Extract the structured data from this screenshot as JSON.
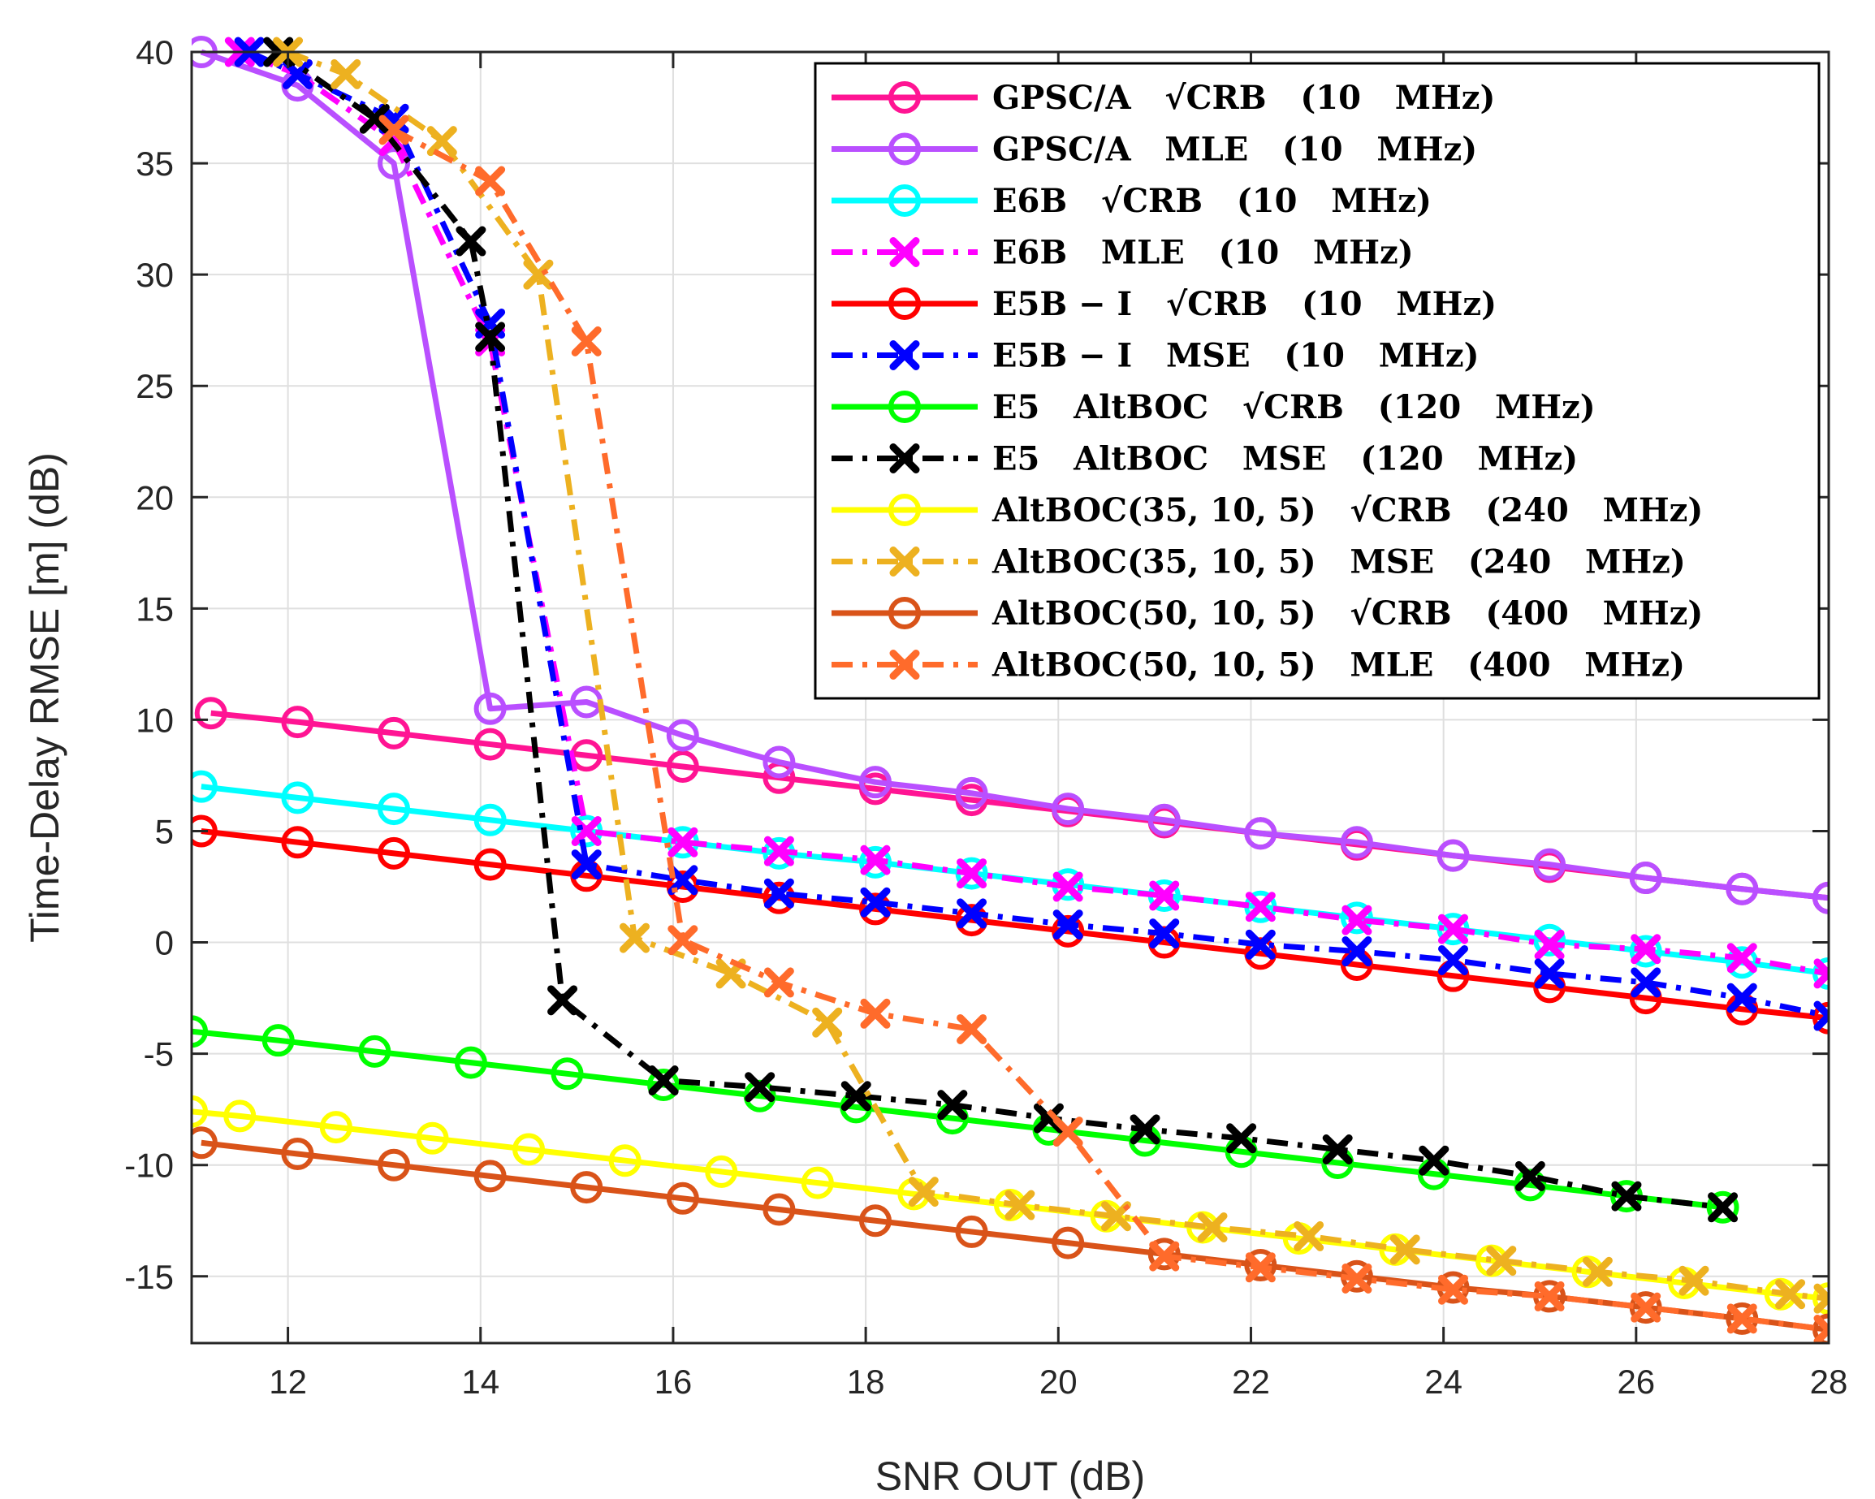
{
  "chart_data": {
    "type": "line",
    "title": "",
    "xlabel": "SNR OUT (dB)",
    "ylabel": "Time-Delay RMSE [m] (dB)",
    "xlim": [
      11,
      28
    ],
    "ylim": [
      -18,
      40
    ],
    "xticks": [
      12,
      14,
      16,
      18,
      20,
      22,
      24,
      26,
      28
    ],
    "yticks": [
      -15,
      -10,
      -5,
      0,
      5,
      10,
      15,
      20,
      25,
      30,
      35,
      40
    ],
    "grid": true,
    "legend_position": "top-right",
    "series": [
      {
        "name": "GPSC/A √CRB (10 MHz)",
        "color": "#ff1493",
        "dash": "solid",
        "marker": "circle",
        "x": [
          11.2,
          12.1,
          13.1,
          14.1,
          15.1,
          16.1,
          17.1,
          18.1,
          19.1,
          20.1,
          21.1,
          22.1,
          23.1,
          24.1,
          25.1,
          26.1,
          27.1,
          28
        ],
        "y": [
          10.3,
          9.9,
          9.4,
          8.9,
          8.4,
          7.9,
          7.4,
          6.9,
          6.4,
          5.9,
          5.4,
          4.9,
          4.4,
          3.9,
          3.4,
          2.9,
          2.4,
          2.0
        ]
      },
      {
        "name": "GPSC/A MLE (10 MHz)",
        "color": "#b94fff",
        "dash": "solid",
        "marker": "circle",
        "x": [
          11.1,
          12.1,
          13.1,
          14.1,
          15.1,
          16.1,
          17.1,
          18.1,
          19.1,
          20.1,
          21.1,
          22.1,
          23.1,
          24.1,
          25.1,
          26.1,
          27.1,
          28
        ],
        "y": [
          40,
          38.5,
          35,
          10.5,
          10.8,
          9.3,
          8.1,
          7.2,
          6.7,
          6.0,
          5.5,
          4.9,
          4.5,
          3.9,
          3.5,
          2.9,
          2.4,
          2.0
        ]
      },
      {
        "name": "E6B √CRB (10 MHz)",
        "color": "#00ffff",
        "dash": "solid",
        "marker": "circle",
        "x": [
          11.1,
          12.1,
          13.1,
          14.1,
          15.1,
          16.1,
          17.1,
          18.1,
          19.1,
          20.1,
          21.1,
          22.1,
          23.1,
          24.1,
          25.1,
          26.1,
          27.1,
          28
        ],
        "y": [
          7.0,
          6.5,
          6.0,
          5.5,
          5.0,
          4.5,
          4.0,
          3.6,
          3.1,
          2.6,
          2.1,
          1.6,
          1.1,
          0.6,
          0.1,
          -0.4,
          -0.9,
          -1.4
        ]
      },
      {
        "name": "E6B MLE (10 MHz)",
        "color": "#ff00ff",
        "dash": "dashdot",
        "marker": "x",
        "x": [
          11.5,
          12.1,
          13.1,
          14.1,
          15.1,
          16.1,
          17.1,
          18.1,
          19.1,
          20.1,
          21.1,
          22.1,
          23.1,
          24.1,
          25.1,
          26.1,
          27.1,
          28
        ],
        "y": [
          40,
          39,
          36,
          27,
          5.0,
          4.5,
          4.1,
          3.7,
          3.1,
          2.5,
          2.1,
          1.6,
          1.0,
          0.6,
          -0.1,
          -0.3,
          -0.7,
          -1.4
        ]
      },
      {
        "name": "E5B − I √CRB (10 MHz)",
        "color": "#ff0000",
        "dash": "solid",
        "marker": "circle",
        "x": [
          11.1,
          12.1,
          13.1,
          14.1,
          15.1,
          16.1,
          17.1,
          18.1,
          19.1,
          20.1,
          21.1,
          22.1,
          23.1,
          24.1,
          25.1,
          26.1,
          27.1,
          28
        ],
        "y": [
          5.0,
          4.5,
          4.0,
          3.5,
          3.0,
          2.5,
          2.0,
          1.5,
          1.0,
          0.5,
          0.0,
          -0.5,
          -1.0,
          -1.5,
          -2.0,
          -2.5,
          -3.0,
          -3.4
        ]
      },
      {
        "name": "E5B − I MSE (10 MHz)",
        "color": "#0000ff",
        "dash": "dashdot",
        "marker": "x",
        "x": [
          11.6,
          12.1,
          13.1,
          14.1,
          15.1,
          16.1,
          17.1,
          18.1,
          19.1,
          20.1,
          21.1,
          22.1,
          23.1,
          24.1,
          25.1,
          26.1,
          27.1,
          28
        ],
        "y": [
          40,
          39,
          37,
          27.8,
          3.5,
          2.8,
          2.2,
          1.8,
          1.3,
          0.8,
          0.4,
          -0.1,
          -0.4,
          -0.8,
          -1.4,
          -1.8,
          -2.5,
          -3.3
        ]
      },
      {
        "name": "E5 AltBOC √CRB (120 MHz)",
        "color": "#00ff00",
        "dash": "solid",
        "marker": "circle",
        "x": [
          11,
          11.9,
          12.9,
          13.9,
          14.9,
          15.9,
          16.9,
          17.9,
          18.9,
          19.9,
          20.9,
          21.9,
          22.9,
          23.9,
          24.9,
          25.9,
          26.9
        ],
        "y": [
          -4.0,
          -4.4,
          -4.9,
          -5.4,
          -5.9,
          -6.4,
          -6.9,
          -7.4,
          -7.9,
          -8.4,
          -8.9,
          -9.4,
          -9.9,
          -10.4,
          -10.9,
          -11.4,
          -11.9
        ]
      },
      {
        "name": "E5 AltBOC MSE (120 MHz)",
        "color": "#000000",
        "dash": "dashdot",
        "marker": "x",
        "x": [
          11.9,
          12.9,
          13.9,
          14.1,
          14.85,
          15.9,
          16.9,
          17.9,
          18.9,
          19.9,
          20.9,
          21.9,
          22.9,
          23.9,
          24.9,
          25.9,
          26.9
        ],
        "y": [
          40,
          37,
          31.5,
          27.2,
          -2.6,
          -6.2,
          -6.5,
          -6.9,
          -7.3,
          -7.9,
          -8.4,
          -8.8,
          -9.3,
          -9.8,
          -10.5,
          -11.4,
          -11.9
        ]
      },
      {
        "name": "AltBOC(35, 10, 5) √CRB (240 MHz)",
        "color": "#ffff00",
        "dash": "solid",
        "marker": "circle",
        "x": [
          11,
          11.5,
          12.5,
          13.5,
          14.5,
          15.5,
          16.5,
          17.5,
          18.5,
          19.5,
          20.5,
          21.5,
          22.5,
          23.5,
          24.5,
          25.5,
          26.5,
          27.5,
          28
        ],
        "y": [
          -7.6,
          -7.8,
          -8.3,
          -8.8,
          -9.3,
          -9.8,
          -10.3,
          -10.8,
          -11.3,
          -11.8,
          -12.3,
          -12.8,
          -13.3,
          -13.8,
          -14.3,
          -14.8,
          -15.3,
          -15.8,
          -16.0
        ]
      },
      {
        "name": "AltBOC(35, 10, 5) MSE (240 MHz)",
        "color": "#edb120",
        "dash": "dashdot",
        "marker": "x",
        "x": [
          12.0,
          12.6,
          13.6,
          14.6,
          15.6,
          16.6,
          17.6,
          18.6,
          19.6,
          20.6,
          21.6,
          22.6,
          23.6,
          24.6,
          25.6,
          26.6,
          27.6,
          28
        ],
        "y": [
          40,
          39,
          36,
          30,
          0.2,
          -1.4,
          -3.6,
          -11.2,
          -11.8,
          -12.3,
          -12.8,
          -13.2,
          -13.8,
          -14.3,
          -14.8,
          -15.2,
          -15.8,
          -16.0
        ]
      },
      {
        "name": "AltBOC(50, 10, 5) √CRB (400 MHz)",
        "color": "#d95319",
        "dash": "solid",
        "marker": "circle",
        "x": [
          11.1,
          12.1,
          13.1,
          14.1,
          15.1,
          16.1,
          17.1,
          18.1,
          19.1,
          20.1,
          21.1,
          22.1,
          23.1,
          24.1,
          25.1,
          26.1,
          27.1,
          28
        ],
        "y": [
          -9.0,
          -9.5,
          -10.0,
          -10.5,
          -11.0,
          -11.5,
          -12.0,
          -12.5,
          -13.0,
          -13.5,
          -14.0,
          -14.5,
          -15.0,
          -15.5,
          -15.9,
          -16.4,
          -16.9,
          -17.4
        ]
      },
      {
        "name": "AltBOC(50, 10, 5) MLE (400 MHz)",
        "color": "#ff6b2b",
        "dash": "dashdot",
        "marker": "x",
        "x": [
          13.1,
          14.1,
          15.1,
          16.1,
          17.1,
          18.1,
          19.1,
          20.1,
          21.1,
          22.1,
          23.1,
          24.1,
          25.1,
          26.1,
          27.1,
          28
        ],
        "y": [
          36.5,
          34.2,
          27.0,
          0.1,
          -1.8,
          -3.2,
          -3.9,
          -8.5,
          -14.1,
          -14.6,
          -15.1,
          -15.6,
          -15.9,
          -16.4,
          -16.9,
          -17.4
        ]
      }
    ],
    "legend": [
      {
        "label": "GPSC/A   √CRB   (10   MHz)",
        "color": "#ff1493",
        "dash": "solid",
        "marker": "circle"
      },
      {
        "label": "GPSC/A   MLE   (10   MHz)",
        "color": "#b94fff",
        "dash": "solid",
        "marker": "circle"
      },
      {
        "label": "E6B   √CRB   (10   MHz)",
        "color": "#00ffff",
        "dash": "solid",
        "marker": "circle"
      },
      {
        "label": "E6B   MLE   (10   MHz)",
        "color": "#ff00ff",
        "dash": "dashdot",
        "marker": "x"
      },
      {
        "label": "E5B − I   √CRB   (10   MHz)",
        "color": "#ff0000",
        "dash": "solid",
        "marker": "circle"
      },
      {
        "label": "E5B − I   MSE   (10   MHz)",
        "color": "#0000ff",
        "dash": "dashdot",
        "marker": "x"
      },
      {
        "label": "E5   AltBOC   √CRB   (120   MHz)",
        "color": "#00ff00",
        "dash": "solid",
        "marker": "circle"
      },
      {
        "label": "E5   AltBOC   MSE   (120   MHz)",
        "color": "#000000",
        "dash": "dashdot",
        "marker": "x"
      },
      {
        "label": "AltBOC(35, 10, 5)   √CRB   (240   MHz)",
        "color": "#ffff00",
        "dash": "solid",
        "marker": "circle"
      },
      {
        "label": "AltBOC(35, 10, 5)   MSE   (240   MHz)",
        "color": "#edb120",
        "dash": "dashdot",
        "marker": "x"
      },
      {
        "label": "AltBOC(50, 10, 5)   √CRB   (400   MHz)",
        "color": "#d95319",
        "dash": "solid",
        "marker": "circle"
      },
      {
        "label": "AltBOC(50, 10, 5)   MLE   (400   MHz)",
        "color": "#ff6b2b",
        "dash": "dashdot",
        "marker": "x"
      }
    ]
  }
}
